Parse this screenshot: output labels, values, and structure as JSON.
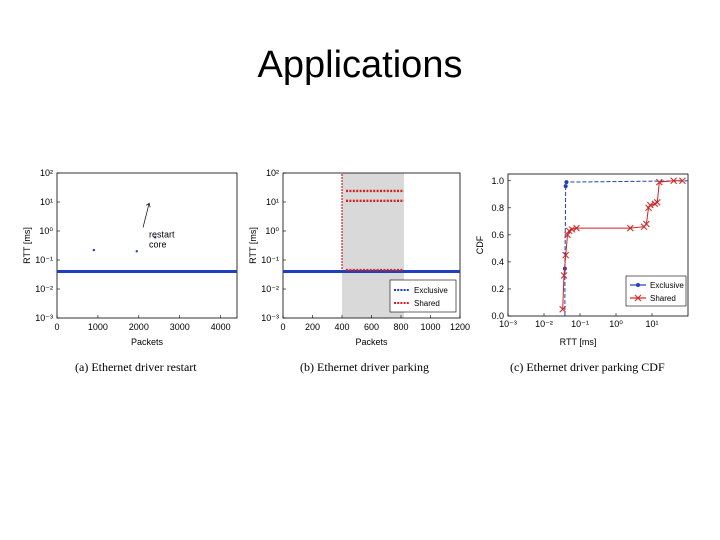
{
  "slide": {
    "title": "Applications"
  },
  "colors": {
    "exclusive": "#1f3fbf",
    "shared": "#d62020",
    "shade": "#d9d9d9",
    "annot": "#000000"
  },
  "chart_data": [
    {
      "type": "scatter",
      "caption": "(a) Ethernet driver restart",
      "xlabel": "Packets",
      "ylabel": "RTT [ms]",
      "xlim": [
        0,
        4400
      ],
      "ylim": [
        0.001,
        100
      ],
      "yscale": "log",
      "xticks": [
        "0",
        "1000",
        "2000",
        "3000",
        "4000"
      ],
      "xtick_values": [
        0,
        1000,
        2000,
        3000,
        4000
      ],
      "yticks": [
        "10⁻³",
        "10⁻²",
        "10⁻¹",
        "10⁰",
        "10¹",
        "10²"
      ],
      "ytick_values": [
        0.001,
        0.01,
        0.1,
        1,
        10,
        100
      ],
      "annotation": {
        "lines": [
          "restart",
          "core"
        ],
        "x": 2250,
        "y": 0.7,
        "arrow_to_x": 2350,
        "arrow_to_y": 9
      },
      "series": [
        {
          "key": "exclusive",
          "baseline_y": 0.04,
          "x_range": [
            0,
            4400
          ],
          "outliers": [
            {
              "x": 900,
              "y": 0.22
            },
            {
              "x": 1950,
              "y": 0.2
            },
            {
              "x": 2400,
              "y": 0.6
            }
          ]
        }
      ]
    },
    {
      "type": "scatter",
      "caption": "(b) Ethernet driver parking",
      "xlabel": "Packets",
      "ylabel": "RTT [ms]",
      "xlim": [
        0,
        1200
      ],
      "ylim": [
        0.001,
        100
      ],
      "yscale": "log",
      "xticks": [
        "0",
        "200",
        "400",
        "600",
        "800",
        "1000",
        "1200"
      ],
      "xtick_values": [
        0,
        200,
        400,
        600,
        800,
        1000,
        1200
      ],
      "yticks": [
        "10⁻³",
        "10⁻²",
        "10⁻¹",
        "10⁰",
        "10¹",
        "10²"
      ],
      "ytick_values": [
        0.001,
        0.01,
        0.1,
        1,
        10,
        100
      ],
      "shaded_region": [
        400,
        820
      ],
      "legend": {
        "position": "bottom-right",
        "entries": [
          "Exclusive",
          "Shared"
        ]
      },
      "series": [
        {
          "key": "exclusive",
          "name": "Exclusive",
          "baseline_y": 0.04,
          "x_range": [
            0,
            1200
          ]
        },
        {
          "key": "shared",
          "name": "Shared",
          "x_range": [
            400,
            820
          ],
          "bands_y": [
            0.045,
            11,
            24
          ],
          "spike_x": 400,
          "spike_y_range": [
            0.05,
            95
          ]
        }
      ]
    },
    {
      "type": "line",
      "caption": "(c) Ethernet driver parking CDF",
      "xlabel": "RTT [ms]",
      "ylabel": "CDF",
      "xlim": [
        0.001,
        100
      ],
      "xscale": "log",
      "ylim": [
        0,
        1.05
      ],
      "xticks": [
        "10⁻³",
        "10⁻²",
        "10⁻¹",
        "10⁰",
        "10¹"
      ],
      "xtick_values": [
        0.001,
        0.01,
        0.1,
        1,
        10
      ],
      "yticks": [
        "0.0",
        "0.2",
        "0.4",
        "0.6",
        "0.8",
        "1.0"
      ],
      "ytick_values": [
        0,
        0.2,
        0.4,
        0.6,
        0.8,
        1.0
      ],
      "legend": {
        "position": "bottom-right",
        "entries": [
          "Exclusive",
          "Shared"
        ]
      },
      "series": [
        {
          "key": "exclusive",
          "name": "Exclusive",
          "points": [
            [
              0.038,
              0.0
            ],
            [
              0.038,
              0.35
            ],
            [
              0.04,
              0.96
            ],
            [
              0.042,
              0.99
            ],
            [
              100,
              1.0
            ]
          ],
          "markers": [
            [
              0.038,
              0.35
            ],
            [
              0.04,
              0.96
            ],
            [
              0.042,
              0.99
            ]
          ]
        },
        {
          "key": "shared",
          "name": "Shared",
          "points": [
            [
              0.033,
              0.05
            ],
            [
              0.036,
              0.3
            ],
            [
              0.04,
              0.45
            ],
            [
              0.045,
              0.6
            ],
            [
              0.05,
              0.63
            ],
            [
              0.06,
              0.64
            ],
            [
              0.08,
              0.65
            ],
            [
              2.5,
              0.65
            ],
            [
              6,
              0.66
            ],
            [
              7,
              0.68
            ],
            [
              8,
              0.8
            ],
            [
              9,
              0.82
            ],
            [
              12,
              0.83
            ],
            [
              14,
              0.84
            ],
            [
              16,
              0.99
            ],
            [
              40,
              1.0
            ],
            [
              70,
              1.0
            ]
          ],
          "markers": [
            [
              0.033,
              0.05
            ],
            [
              0.036,
              0.3
            ],
            [
              0.04,
              0.45
            ],
            [
              0.045,
              0.6
            ],
            [
              0.05,
              0.63
            ],
            [
              0.06,
              0.64
            ],
            [
              0.08,
              0.65
            ],
            [
              2.5,
              0.65
            ],
            [
              6,
              0.66
            ],
            [
              7,
              0.68
            ],
            [
              8,
              0.8
            ],
            [
              9,
              0.82
            ],
            [
              12,
              0.83
            ],
            [
              14,
              0.84
            ],
            [
              16,
              0.99
            ],
            [
              40,
              1.0
            ],
            [
              70,
              1.0
            ]
          ]
        }
      ]
    }
  ]
}
